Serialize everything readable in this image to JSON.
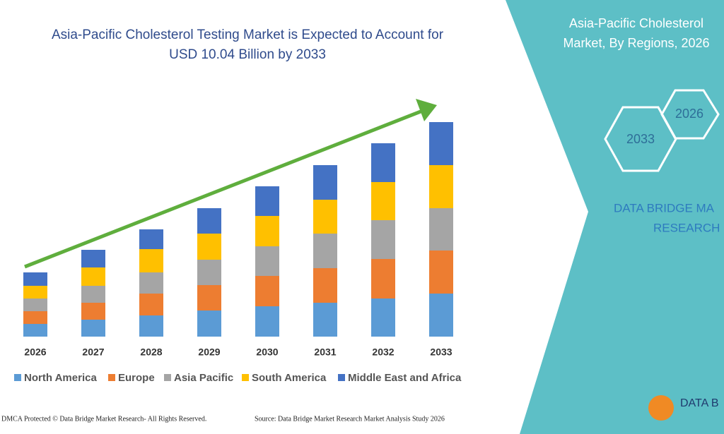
{
  "chart_data": {
    "type": "bar",
    "stacked": true,
    "title": [
      "Asia-Pacific Cholesterol Testing Market is Expected to Account for",
      "USD 10.04 Billion by 2033"
    ],
    "categories": [
      "2026",
      "2027",
      "2028",
      "2029",
      "2030",
      "2031",
      "2032",
      "2033"
    ],
    "series": [
      {
        "name": "North America",
        "color": "#5b9bd5",
        "values": [
          18,
          24,
          30,
          37,
          43,
          48,
          54,
          61
        ]
      },
      {
        "name": "Europe",
        "color": "#ed7d31",
        "values": [
          18,
          24,
          31,
          36,
          43,
          49,
          56,
          61
        ]
      },
      {
        "name": "Asia Pacific",
        "color": "#a5a5a5",
        "values": [
          18,
          24,
          30,
          36,
          42,
          49,
          55,
          60
        ]
      },
      {
        "name": "South America",
        "color": "#ffc000",
        "values": [
          18,
          26,
          33,
          37,
          43,
          48,
          54,
          61
        ]
      },
      {
        "name": "Middle East and Africa",
        "color": "#4472c4",
        "values": [
          19,
          25,
          28,
          36,
          42,
          49,
          55,
          61
        ]
      }
    ],
    "ylim": [
      0,
      304
    ]
  },
  "panel": {
    "title": [
      "Asia-Pacific Cholesterol",
      "Market, By Regions, 2026"
    ],
    "hex_1": "2026",
    "hex_2": "2033",
    "brand": [
      "DATA BRIDGE MA",
      "RESEARCH"
    ]
  },
  "footer": {
    "left": "DMCA Protected © Data Bridge Market Research-  All Rights Reserved.",
    "right": "Source: Data Bridge Market Research  Market Analysis Study 2026"
  },
  "logo": "DATA B"
}
